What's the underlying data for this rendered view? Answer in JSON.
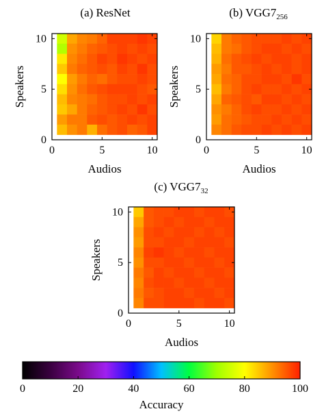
{
  "chart_data": [
    {
      "type": "heatmap",
      "title": "(a) ResNet",
      "xlabel": "Audios",
      "ylabel": "Speakers",
      "xlim": [
        0,
        10.5
      ],
      "ylim": [
        0,
        10.5
      ],
      "xticks": [
        0,
        5,
        10
      ],
      "yticks": [
        0,
        5,
        10
      ],
      "x": [
        1,
        2,
        3,
        4,
        5,
        6,
        7,
        8,
        9,
        10
      ],
      "y": [
        10,
        9,
        8,
        7,
        6,
        5,
        4,
        3,
        2,
        1
      ],
      "values": [
        [
          75,
          88,
          91,
          92,
          94,
          97,
          97,
          97,
          98,
          97
        ],
        [
          72,
          90,
          92,
          94,
          95,
          96,
          97,
          96,
          97,
          96
        ],
        [
          82,
          91,
          93,
          95,
          97,
          96,
          98,
          97,
          96,
          97
        ],
        [
          85,
          92,
          94,
          95,
          96,
          95,
          97,
          96,
          98,
          96
        ],
        [
          80,
          89,
          92,
          94,
          93,
          95,
          96,
          96,
          97,
          96
        ],
        [
          83,
          90,
          93,
          95,
          96,
          97,
          97,
          97,
          96,
          95
        ],
        [
          86,
          91,
          92,
          93,
          95,
          96,
          96,
          97,
          96,
          97
        ],
        [
          85,
          88,
          92,
          94,
          95,
          96,
          97,
          96,
          98,
          96
        ],
        [
          89,
          92,
          92,
          95,
          96,
          95,
          96,
          97,
          96,
          97
        ],
        [
          86,
          90,
          92,
          87,
          93,
          95,
          96,
          94,
          95,
          97
        ]
      ]
    },
    {
      "type": "heatmap",
      "title": "(b) VGG7",
      "title_sub": "256",
      "xlabel": "Audios",
      "ylabel": "Speakers",
      "xlim": [
        0,
        10.5
      ],
      "ylim": [
        0,
        10.5
      ],
      "xticks": [
        0,
        5,
        10
      ],
      "yticks": [
        0,
        5,
        10
      ],
      "x": [
        1,
        2,
        3,
        4,
        5,
        6,
        7,
        8,
        9,
        10
      ],
      "y": [
        10,
        9,
        8,
        7,
        6,
        5,
        4,
        3,
        2,
        1
      ],
      "values": [
        [
          84,
          92,
          94,
          95,
          96,
          96,
          96,
          97,
          96,
          97
        ],
        [
          86,
          92,
          93,
          95,
          96,
          97,
          97,
          96,
          97,
          96
        ],
        [
          87,
          93,
          95,
          96,
          97,
          96,
          97,
          97,
          96,
          97
        ],
        [
          89,
          92,
          95,
          95,
          96,
          97,
          96,
          97,
          96,
          97
        ],
        [
          88,
          93,
          94,
          96,
          96,
          97,
          97,
          96,
          98,
          96
        ],
        [
          86,
          92,
          94,
          96,
          97,
          96,
          96,
          97,
          96,
          97
        ],
        [
          88,
          94,
          95,
          96,
          95,
          97,
          97,
          96,
          97,
          96
        ],
        [
          90,
          92,
          94,
          96,
          97,
          96,
          96,
          97,
          96,
          97
        ],
        [
          89,
          93,
          94,
          95,
          96,
          96,
          97,
          96,
          97,
          96
        ],
        [
          91,
          93,
          95,
          96,
          96,
          97,
          96,
          97,
          96,
          97
        ]
      ]
    },
    {
      "type": "heatmap",
      "title": "(c) VGG7",
      "title_sub": "32",
      "xlabel": "Audios",
      "ylabel": "Speakers",
      "xlim": [
        0,
        10.5
      ],
      "ylim": [
        0,
        10.5
      ],
      "xticks": [
        0,
        5,
        10
      ],
      "yticks": [
        0,
        5,
        10
      ],
      "x": [
        1,
        2,
        3,
        4,
        5,
        6,
        7,
        8,
        9,
        10
      ],
      "y": [
        10,
        9,
        8,
        7,
        6,
        5,
        4,
        3,
        2,
        1
      ],
      "values": [
        [
          85,
          95,
          96,
          96,
          97,
          97,
          96,
          97,
          97,
          96
        ],
        [
          88,
          95,
          96,
          97,
          96,
          97,
          97,
          96,
          97,
          97
        ],
        [
          90,
          96,
          97,
          96,
          97,
          97,
          96,
          97,
          96,
          97
        ],
        [
          89,
          96,
          96,
          97,
          97,
          96,
          97,
          97,
          97,
          96
        ],
        [
          91,
          97,
          98,
          97,
          96,
          97,
          97,
          96,
          97,
          97
        ],
        [
          90,
          96,
          96,
          97,
          97,
          96,
          97,
          97,
          96,
          97
        ],
        [
          92,
          95,
          97,
          96,
          97,
          97,
          96,
          97,
          97,
          96
        ],
        [
          91,
          96,
          97,
          97,
          96,
          97,
          97,
          96,
          97,
          97
        ],
        [
          92,
          95,
          96,
          97,
          97,
          96,
          97,
          97,
          96,
          97
        ],
        [
          91,
          96,
          96,
          97,
          97,
          97,
          96,
          97,
          97,
          96
        ]
      ]
    }
  ],
  "colorbar": {
    "label": "Accuracy",
    "range": [
      0,
      100
    ],
    "ticks": [
      0,
      20,
      40,
      60,
      80,
      100
    ],
    "colormap": [
      "#000000",
      "#3a0040",
      "#7a0a8a",
      "#a020f0",
      "#1010ff",
      "#00c0ff",
      "#00ff40",
      "#a0ff00",
      "#ffff00",
      "#ff9000",
      "#ff2000"
    ]
  }
}
